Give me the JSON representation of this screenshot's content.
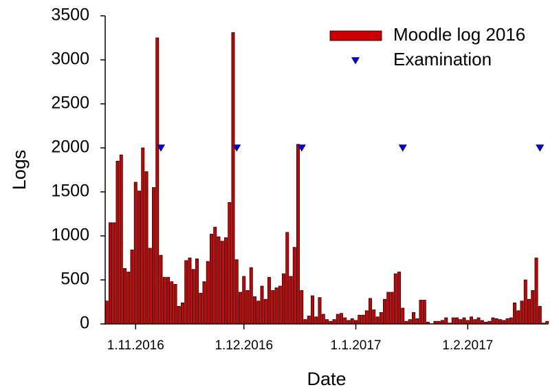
{
  "chart_data": {
    "type": "bar",
    "x_label": "Date",
    "y_label": "Logs",
    "x": [
      "24.10.2016",
      "25.10.2016",
      "26.10.2016",
      "27.10.2016",
      "28.10.2016",
      "29.10.2016",
      "30.10.2016",
      "31.10.2016",
      "1.11.2016",
      "2.11.2016",
      "3.11.2016",
      "4.11.2016",
      "5.11.2016",
      "6.11.2016",
      "7.11.2016",
      "8.11.2016",
      "9.11.2016",
      "10.11.2016",
      "11.11.2016",
      "12.11.2016",
      "13.11.2016",
      "14.11.2016",
      "15.11.2016",
      "16.11.2016",
      "17.11.2016",
      "18.11.2016",
      "19.11.2016",
      "20.11.2016",
      "21.11.2016",
      "22.11.2016",
      "23.11.2016",
      "24.11.2016",
      "25.11.2016",
      "26.11.2016",
      "27.11.2016",
      "28.11.2016",
      "29.11.2016",
      "30.11.2016",
      "1.12.2016",
      "2.12.2016",
      "3.12.2016",
      "4.12.2016",
      "5.12.2016",
      "6.12.2016",
      "7.12.2016",
      "8.12.2016",
      "9.12.2016",
      "10.12.2016",
      "11.12.2016",
      "12.12.2016",
      "13.12.2016",
      "14.12.2016",
      "15.12.2016",
      "16.12.2016",
      "17.12.2016",
      "18.12.2016",
      "19.12.2016",
      "20.12.2016",
      "21.12.2016",
      "22.12.2016",
      "23.12.2016",
      "24.12.2016",
      "25.12.2016",
      "26.12.2016",
      "27.12.2016",
      "28.12.2016",
      "29.12.2016",
      "30.12.2016",
      "31.12.2016",
      "1.1.2017",
      "2.1.2017",
      "3.1.2017",
      "4.1.2017",
      "5.1.2017",
      "6.1.2017",
      "7.1.2017",
      "8.1.2017",
      "9.1.2017",
      "10.1.2017",
      "11.1.2017",
      "12.1.2017",
      "13.1.2017",
      "14.1.2017",
      "15.1.2017",
      "16.1.2017",
      "17.1.2017",
      "18.1.2017",
      "19.1.2017",
      "20.1.2017",
      "21.1.2017",
      "22.1.2017",
      "23.1.2017",
      "24.1.2017",
      "25.1.2017",
      "26.1.2017",
      "27.1.2017",
      "28.1.2017",
      "29.1.2017",
      "30.1.2017",
      "31.1.2017",
      "1.2.2017",
      "2.2.2017",
      "3.2.2017",
      "4.2.2017",
      "5.2.2017",
      "6.2.2017",
      "7.2.2017",
      "8.2.2017",
      "9.2.2017",
      "10.2.2017",
      "11.2.2017",
      "12.2.2017",
      "13.2.2017",
      "14.2.2017",
      "15.2.2017",
      "16.2.2017",
      "17.2.2017",
      "18.2.2017",
      "19.2.2017",
      "20.2.2017",
      "21.2.2017",
      "22.2.2017",
      "23.2.2017"
    ],
    "series": [
      {
        "name": "Moodle log 2016",
        "type": "bar",
        "color": "#cc0000",
        "values": [
          260,
          1150,
          1150,
          1850,
          1920,
          630,
          590,
          840,
          1610,
          1510,
          2000,
          1730,
          860,
          1550,
          3250,
          780,
          530,
          530,
          480,
          450,
          200,
          240,
          720,
          750,
          620,
          740,
          350,
          480,
          710,
          1020,
          1100,
          990,
          940,
          980,
          1380,
          3310,
          730,
          360,
          540,
          380,
          640,
          310,
          260,
          430,
          280,
          530,
          380,
          410,
          430,
          570,
          1040,
          540,
          870,
          2040,
          380,
          50,
          90,
          320,
          80,
          300,
          110,
          50,
          30,
          50,
          110,
          120,
          70,
          40,
          60,
          40,
          100,
          100,
          150,
          290,
          160,
          80,
          130,
          280,
          360,
          360,
          570,
          590,
          180,
          30,
          50,
          130,
          60,
          270,
          270,
          20,
          0,
          30,
          30,
          40,
          70,
          10,
          70,
          70,
          50,
          70,
          40,
          80,
          50,
          70,
          40,
          20,
          30,
          70,
          60,
          50,
          40,
          60,
          70,
          240,
          150,
          260,
          500,
          280,
          380,
          750,
          200,
          10,
          30
        ]
      },
      {
        "name": "Examination",
        "type": "scatter",
        "color": "#0000ee",
        "x": [
          "8.11.2016",
          "29.11.2016",
          "17.12.2016",
          "14.1.2017",
          "21.2.2017"
        ],
        "values": [
          2000,
          2000,
          2000,
          2000,
          2000
        ]
      }
    ],
    "xlim": [
      "23.10.2016",
      "24.2.2017"
    ],
    "xticks": [
      "1.11.2016",
      "1.12.2016",
      "1.1.2017",
      "1.2.2017"
    ],
    "ylim": [
      0,
      3500
    ],
    "yticks": [
      0,
      500,
      1000,
      1500,
      2000,
      2500,
      3000,
      3500
    ],
    "legend": "upper right"
  }
}
